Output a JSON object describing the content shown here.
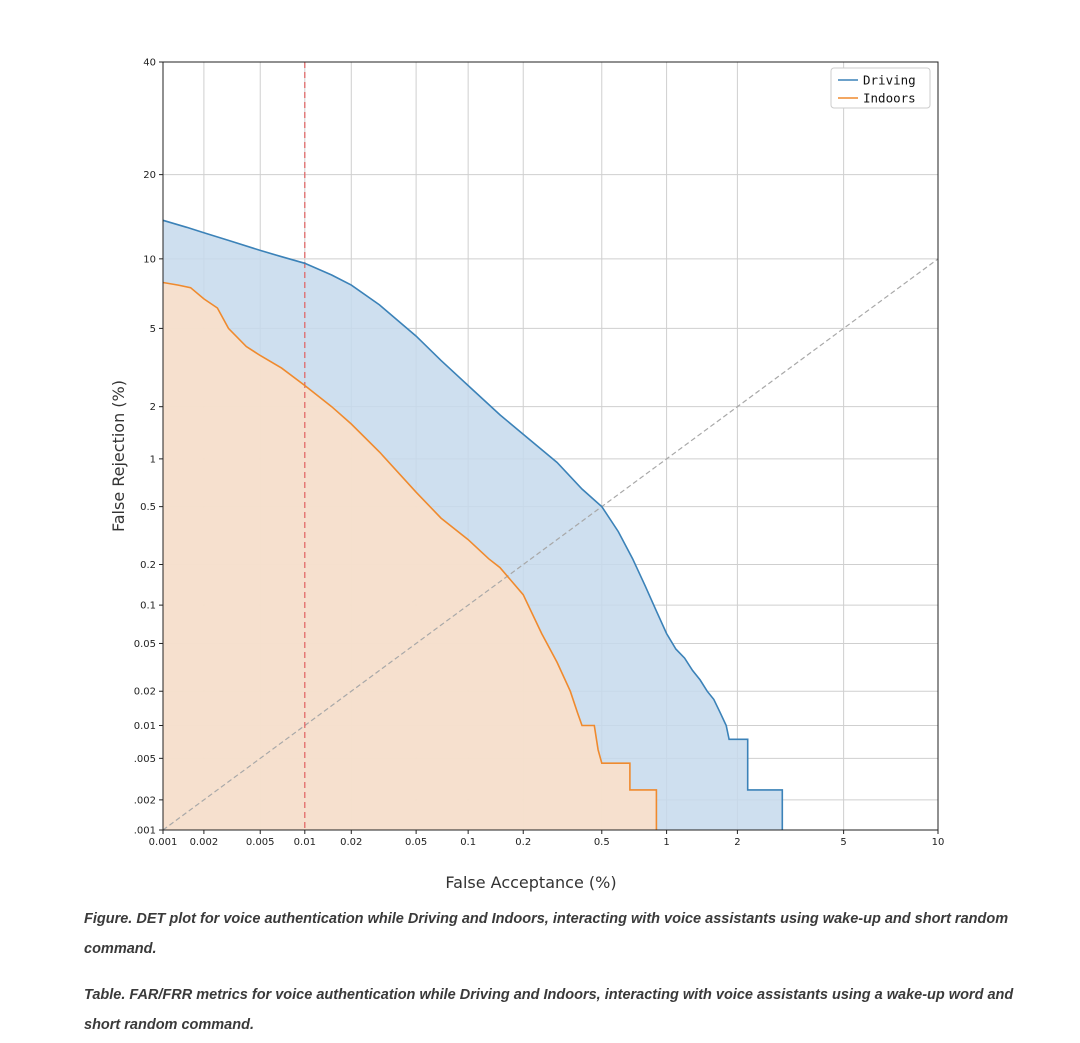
{
  "chart_data": {
    "type": "line",
    "xlabel": "False Acceptance (%)",
    "ylabel": "False Rejection (%)",
    "xscale": "probit",
    "yscale": "probit",
    "xlim": [
      0.001,
      10
    ],
    "ylim": [
      0.001,
      40
    ],
    "x_ticks": [
      0.001,
      0.002,
      0.005,
      0.01,
      0.02,
      0.05,
      0.1,
      0.2,
      0.5,
      1,
      2,
      5,
      10
    ],
    "x_tick_labels": [
      "0.001",
      "0.002",
      "0.005",
      "0.01",
      "0.02",
      "0.05",
      "0.1",
      "0.2",
      "0.5",
      "1",
      "2",
      "5",
      "10"
    ],
    "y_ticks": [
      0.001,
      0.002,
      0.005,
      0.01,
      0.02,
      0.05,
      0.1,
      0.2,
      0.5,
      1,
      2,
      5,
      10,
      20,
      40
    ],
    "y_tick_labels": [
      ".001",
      ".002",
      ".005",
      "0.01",
      "0.02",
      "0.05",
      "0.1",
      "0.2",
      "0.5",
      "1",
      "2",
      "5",
      "10",
      "20",
      "40"
    ],
    "grid": true,
    "legend_position": "top-right",
    "reference_lines": {
      "vertical_red_dashed_at_x": 0.01,
      "diagonal_gray_dashed": "x = y"
    },
    "series": [
      {
        "name": "Driving",
        "color": "#3b82b8",
        "fill": "#c6d9ec",
        "points": [
          [
            0.001,
            14.0
          ],
          [
            0.0015,
            13.2
          ],
          [
            0.002,
            12.6
          ],
          [
            0.003,
            11.8
          ],
          [
            0.005,
            10.8
          ],
          [
            0.007,
            10.2
          ],
          [
            0.01,
            9.6
          ],
          [
            0.015,
            8.6
          ],
          [
            0.02,
            7.8
          ],
          [
            0.03,
            6.4
          ],
          [
            0.05,
            4.6
          ],
          [
            0.07,
            3.5
          ],
          [
            0.1,
            2.6
          ],
          [
            0.15,
            1.8
          ],
          [
            0.2,
            1.4
          ],
          [
            0.3,
            0.95
          ],
          [
            0.4,
            0.65
          ],
          [
            0.5,
            0.5
          ],
          [
            0.6,
            0.34
          ],
          [
            0.7,
            0.22
          ],
          [
            0.8,
            0.14
          ],
          [
            0.9,
            0.09
          ],
          [
            1.0,
            0.06
          ],
          [
            1.1,
            0.045
          ],
          [
            1.2,
            0.038
          ],
          [
            1.3,
            0.03
          ],
          [
            1.4,
            0.025
          ],
          [
            1.5,
            0.02
          ],
          [
            1.6,
            0.017
          ],
          [
            1.7,
            0.013
          ],
          [
            1.8,
            0.01
          ],
          [
            1.85,
            0.0075
          ],
          [
            2.2,
            0.0075
          ],
          [
            2.2,
            0.0025
          ],
          [
            3.0,
            0.0025
          ],
          [
            3.0,
            0.001
          ]
        ]
      },
      {
        "name": "Indoors",
        "color": "#ef8a2e",
        "fill": "#fde1c8",
        "points": [
          [
            0.001,
            8.0
          ],
          [
            0.0013,
            7.8
          ],
          [
            0.0016,
            7.6
          ],
          [
            0.002,
            6.8
          ],
          [
            0.0025,
            6.2
          ],
          [
            0.003,
            5.0
          ],
          [
            0.004,
            4.1
          ],
          [
            0.005,
            3.7
          ],
          [
            0.007,
            3.2
          ],
          [
            0.01,
            2.6
          ],
          [
            0.015,
            2.0
          ],
          [
            0.02,
            1.6
          ],
          [
            0.03,
            1.1
          ],
          [
            0.05,
            0.62
          ],
          [
            0.07,
            0.42
          ],
          [
            0.1,
            0.3
          ],
          [
            0.13,
            0.22
          ],
          [
            0.15,
            0.19
          ],
          [
            0.2,
            0.12
          ],
          [
            0.25,
            0.06
          ],
          [
            0.3,
            0.035
          ],
          [
            0.35,
            0.02
          ],
          [
            0.38,
            0.013
          ],
          [
            0.4,
            0.01
          ],
          [
            0.46,
            0.01
          ],
          [
            0.48,
            0.006
          ],
          [
            0.5,
            0.0045
          ],
          [
            0.68,
            0.0045
          ],
          [
            0.68,
            0.0025
          ],
          [
            0.9,
            0.0025
          ],
          [
            0.9,
            0.001
          ]
        ]
      }
    ]
  },
  "captions": {
    "figure": "Figure. DET plot for voice authentication while Driving and Indoors, interacting with voice assistants using wake-up and short random command.",
    "table": "Table. FAR/FRR metrics for voice authentication while Driving and Indoors, interacting with voice assistants using a wake-up word and short random command."
  }
}
